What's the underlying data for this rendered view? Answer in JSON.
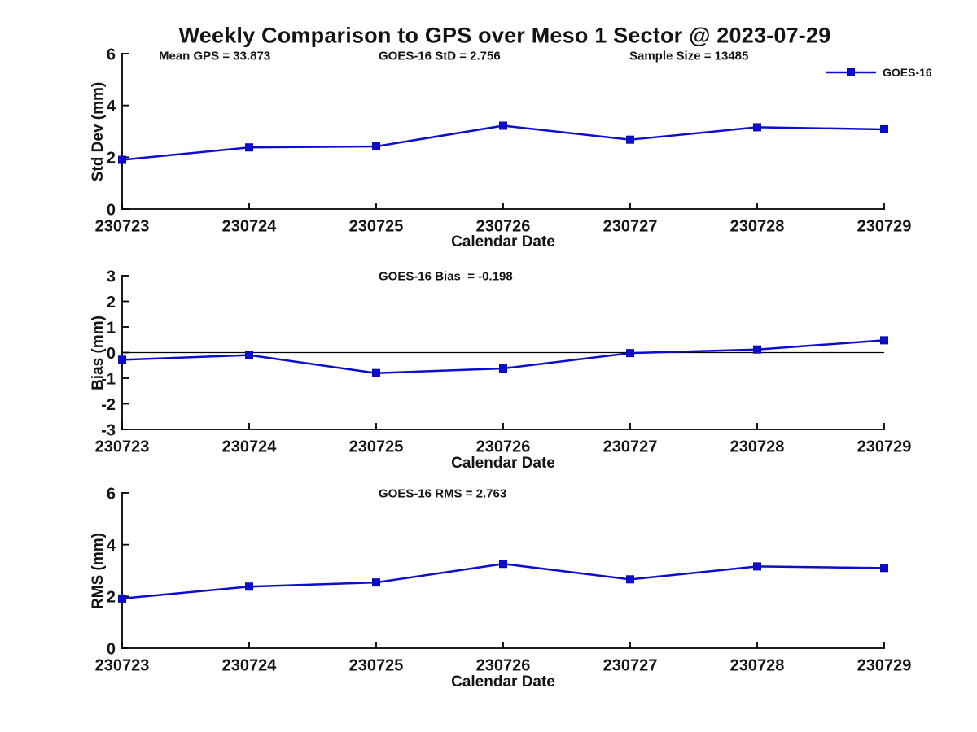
{
  "figure": {
    "title": "Weekly Comparison to GPS over Meso 1 Sector @ 2023-07-29",
    "series_color": "#0d0dd0",
    "marker_edge_color": "#0a0aa6",
    "axis_color": "#000000",
    "legend": {
      "label": "GOES-16"
    }
  },
  "chart_data": [
    {
      "type": "line",
      "title": "",
      "xlabel": "Calendar Date",
      "ylabel": "Std Dev (mm)",
      "categories": [
        "230723",
        "230724",
        "230725",
        "230726",
        "230727",
        "230728",
        "230729"
      ],
      "series": [
        {
          "name": "GOES-16",
          "marker": "square",
          "values": [
            1.9,
            2.38,
            2.42,
            3.22,
            2.68,
            3.16,
            3.08
          ]
        }
      ],
      "ylim": [
        0,
        6
      ],
      "yticks": [
        0,
        2,
        4,
        6
      ],
      "grid": false,
      "legend_position": "upper-right-outside",
      "annotations": [
        "Mean GPS = 33.873",
        "GOES-16 StD = 2.756",
        "Sample Size = 13485"
      ]
    },
    {
      "type": "line",
      "title": "",
      "xlabel": "Calendar Date",
      "ylabel": "Bias (mm)",
      "categories": [
        "230723",
        "230724",
        "230725",
        "230726",
        "230727",
        "230728",
        "230729"
      ],
      "series": [
        {
          "name": "GOES-16",
          "marker": "square",
          "values": [
            -0.28,
            -0.1,
            -0.8,
            -0.62,
            -0.02,
            0.12,
            0.48
          ]
        }
      ],
      "ylim": [
        -3,
        3
      ],
      "yticks": [
        -3,
        -2,
        -1,
        0,
        1,
        2,
        3
      ],
      "zero_line": true,
      "grid": false,
      "annotations": [
        "GOES-16 Bias  = -0.198"
      ]
    },
    {
      "type": "line",
      "title": "",
      "xlabel": "Calendar Date",
      "ylabel": "RMS (mm)",
      "categories": [
        "230723",
        "230724",
        "230725",
        "230726",
        "230727",
        "230728",
        "230729"
      ],
      "series": [
        {
          "name": "GOES-16",
          "marker": "square",
          "values": [
            1.92,
            2.38,
            2.54,
            3.26,
            2.66,
            3.16,
            3.1
          ]
        }
      ],
      "ylim": [
        0,
        6
      ],
      "yticks": [
        0,
        2,
        4,
        6
      ],
      "grid": false,
      "annotations": [
        "GOES-16 RMS = 2.763"
      ]
    }
  ]
}
